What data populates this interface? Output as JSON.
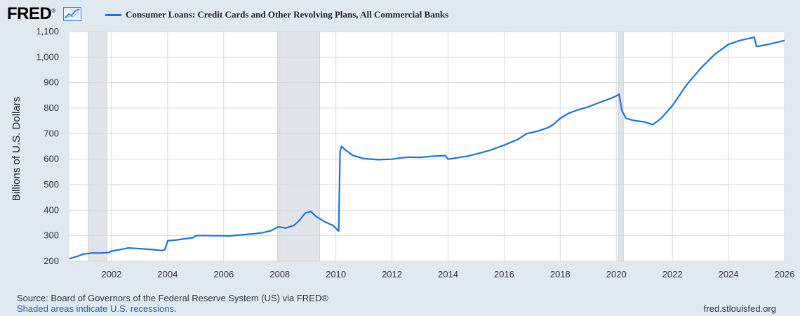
{
  "header": {
    "logo_text": "FRED",
    "logo_mark": "®",
    "logo_icon": "line-graph-icon"
  },
  "footer": {
    "source": "Source: Board of Governors of the Federal Reserve System (US) via FRED®",
    "note": "Shaded areas indicate U.S. recessions.",
    "url": "fred.stlouisfed.org"
  },
  "colors": {
    "background": "#e1e9f0",
    "plot_background": "#ffffff",
    "series": "#1b75d8",
    "recession": "#e1e5ea",
    "grid": "#d5d9dd"
  },
  "chart_data": {
    "type": "line",
    "title": "",
    "xlabel": "",
    "ylabel": "Billions of U.S. Dollars",
    "xlim": [
      2000.5,
      2026.0
    ],
    "ylim": [
      200,
      1100
    ],
    "grid": true,
    "legend_position": "top-left",
    "x_ticks": [
      2002,
      2004,
      2006,
      2008,
      2010,
      2012,
      2014,
      2016,
      2018,
      2020,
      2022,
      2024,
      2026
    ],
    "y_ticks": [
      200,
      300,
      400,
      500,
      600,
      700,
      800,
      900,
      1000,
      1100
    ],
    "y_tick_labels": [
      "200",
      "300",
      "400",
      "500",
      "600",
      "700",
      "800",
      "900",
      "1,000",
      "1,100"
    ],
    "recessions": [
      {
        "start": 2001.17,
        "end": 2001.83
      },
      {
        "start": 2007.92,
        "end": 2009.42
      },
      {
        "start": 2020.08,
        "end": 2020.25
      }
    ],
    "series": [
      {
        "name": "Consumer Loans: Credit Cards and Other Revolving Plans, All Commercial Banks",
        "x": [
          2000.5,
          2000.8,
          2001.0,
          2001.3,
          2001.6,
          2001.9,
          2002.0,
          2002.3,
          2002.6,
          2002.9,
          2003.2,
          2003.5,
          2003.8,
          2003.9,
          2004.0,
          2004.3,
          2004.6,
          2004.9,
          2005.0,
          2005.3,
          2005.6,
          2005.9,
          2006.2,
          2006.5,
          2006.8,
          2007.1,
          2007.4,
          2007.7,
          2007.95,
          2008.2,
          2008.5,
          2008.7,
          2008.9,
          2009.1,
          2009.3,
          2009.6,
          2009.9,
          2010.1,
          2010.15,
          2010.2,
          2010.35,
          2010.6,
          2011.0,
          2011.5,
          2012.0,
          2012.3,
          2012.6,
          2013.0,
          2013.5,
          2013.9,
          2014.0,
          2014.3,
          2014.7,
          2015.0,
          2015.5,
          2016.0,
          2016.5,
          2016.8,
          2017.2,
          2017.6,
          2017.8,
          2018.0,
          2018.3,
          2018.6,
          2019.0,
          2019.4,
          2019.8,
          2020.0,
          2020.1,
          2020.2,
          2020.35,
          2020.6,
          2021.0,
          2021.3,
          2021.6,
          2022.0,
          2022.5,
          2023.0,
          2023.5,
          2024.0,
          2024.4,
          2024.8,
          2024.92,
          2025.0,
          2025.2,
          2025.5,
          2026.0
        ],
        "y": [
          210,
          220,
          228,
          232,
          232,
          234,
          240,
          245,
          252,
          250,
          248,
          245,
          242,
          245,
          280,
          283,
          288,
          292,
          300,
          301,
          300,
          300,
          299,
          302,
          305,
          308,
          312,
          320,
          335,
          330,
          340,
          360,
          388,
          395,
          375,
          355,
          340,
          318,
          630,
          650,
          635,
          615,
          602,
          598,
          600,
          605,
          608,
          607,
          612,
          614,
          600,
          605,
          612,
          620,
          635,
          655,
          678,
          700,
          710,
          725,
          740,
          760,
          780,
          792,
          805,
          822,
          838,
          848,
          855,
          790,
          760,
          752,
          746,
          735,
          760,
          810,
          890,
          955,
          1010,
          1050,
          1065,
          1075,
          1078,
          1042,
          1045,
          1052,
          1065
        ]
      }
    ]
  }
}
